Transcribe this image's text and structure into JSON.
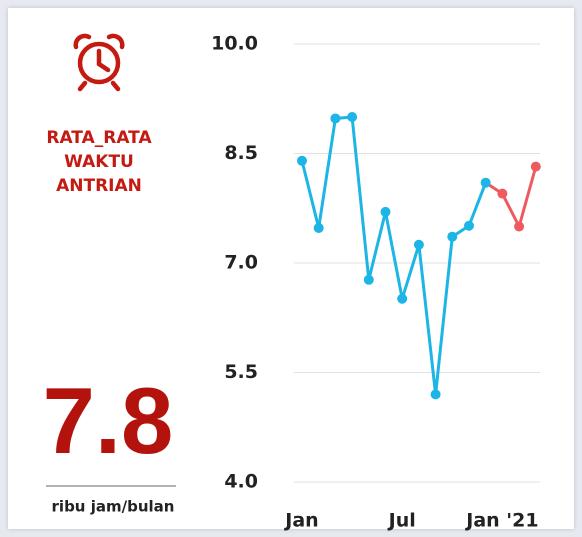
{
  "card": {
    "title_lines": [
      "RATA_RATA",
      "WAKTU",
      "ANTRIAN"
    ],
    "value": "7.8",
    "unit": "ribu jam/bulan"
  },
  "chart_data": {
    "type": "line",
    "categories": [
      "Jan",
      null,
      null,
      null,
      null,
      null,
      "Jul",
      null,
      null,
      null,
      null,
      null,
      "Jan '21",
      null,
      null
    ],
    "series": [
      {
        "values": [
          8.4,
          7.48,
          8.98,
          9.0,
          6.77,
          7.7,
          6.51,
          7.25,
          5.2,
          7.36,
          7.51,
          8.1,
          7.95,
          7.5,
          8.32
        ],
        "colors": [
          "#1cb5e6",
          "#1cb5e6",
          "#1cb5e6",
          "#1cb5e6",
          "#1cb5e6",
          "#1cb5e6",
          "#1cb5e6",
          "#1cb5e6",
          "#1cb5e6",
          "#1cb5e6",
          "#1cb5e6",
          "#1cb5e6",
          "#ef5a5f",
          "#ef5a5f",
          "#ef5a5f"
        ]
      }
    ],
    "ylim": [
      4.0,
      10.0
    ],
    "yticks": [
      {
        "value": 4.0,
        "label": "4.0"
      },
      {
        "value": 5.5,
        "label": "5.5"
      },
      {
        "value": 7.0,
        "label": "7.0"
      },
      {
        "value": 8.5,
        "label": "8.5"
      },
      {
        "value": 10.0,
        "label": "10.0"
      }
    ],
    "grid": true
  }
}
